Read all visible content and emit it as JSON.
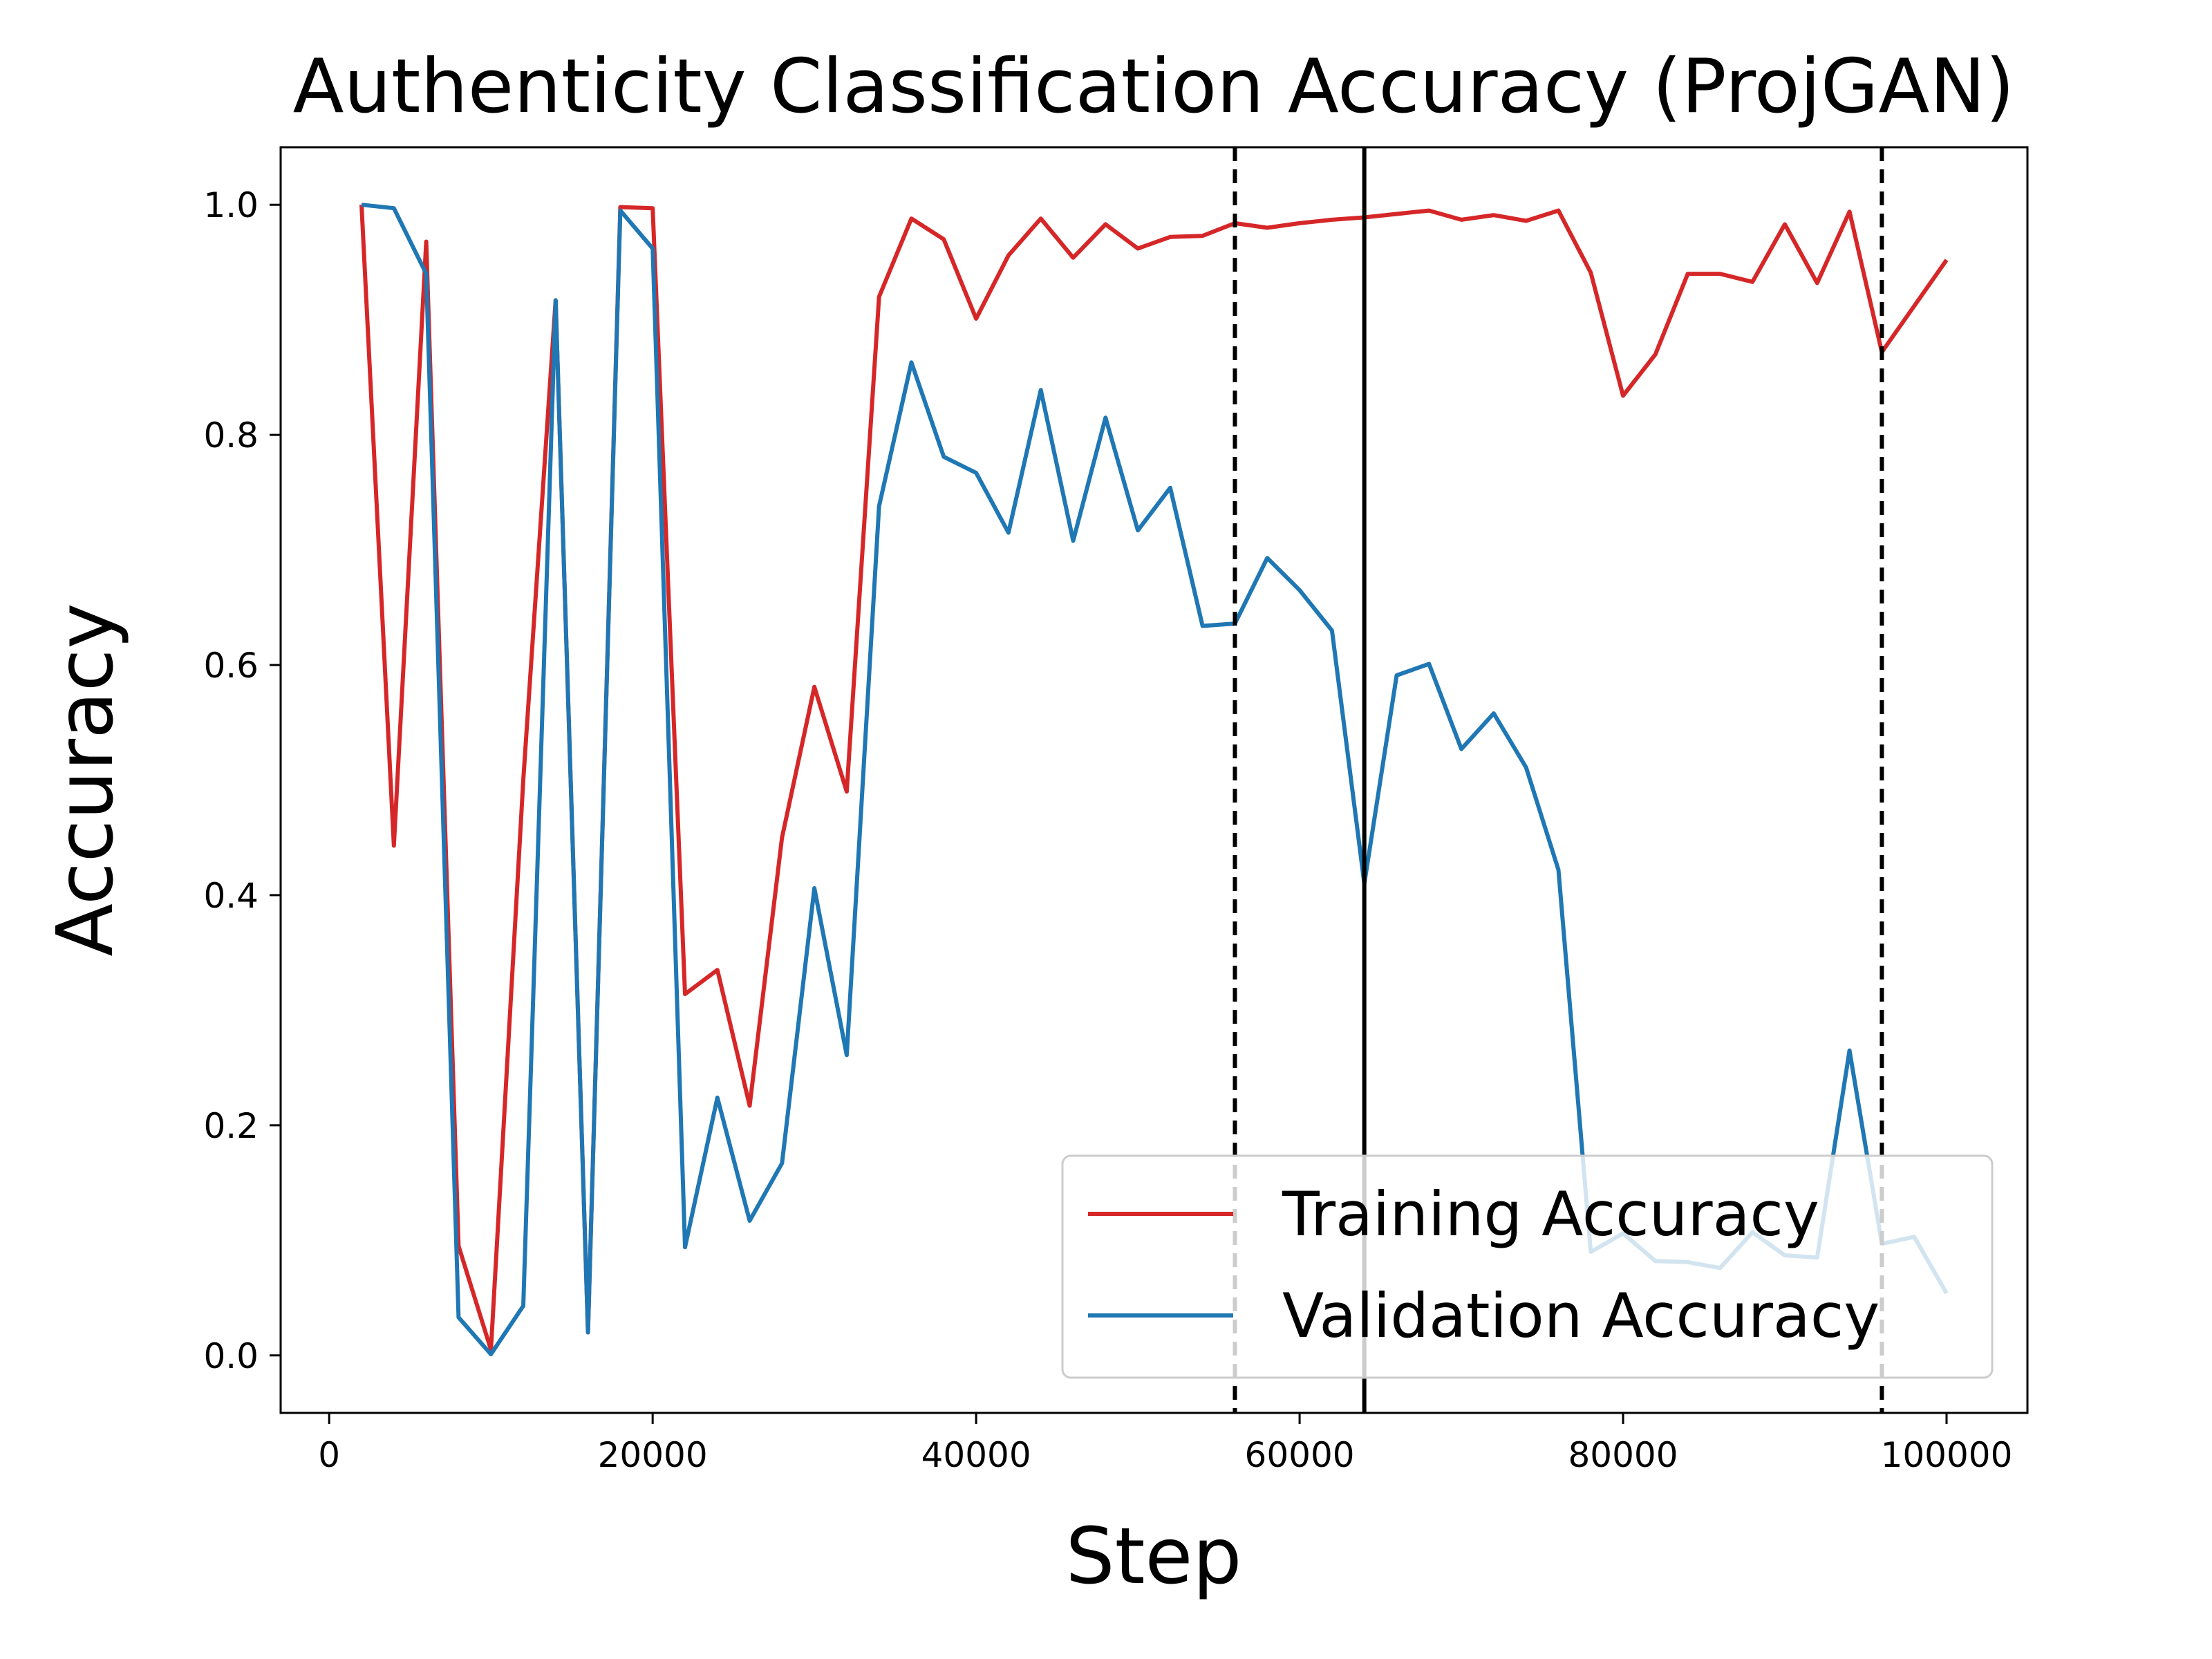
{
  "chart_data": {
    "type": "line",
    "title": "Authenticity Classification Accuracy (ProjGAN)",
    "xlabel": "Step",
    "ylabel": "Accuracy",
    "xlim": [
      -3000,
      105000
    ],
    "ylim": [
      -0.05,
      1.05
    ],
    "xticks": [
      0,
      20000,
      40000,
      60000,
      80000,
      100000
    ],
    "xtick_labels": [
      "0",
      "20000",
      "40000",
      "60000",
      "80000",
      "100000"
    ],
    "yticks": [
      0.0,
      0.2,
      0.4,
      0.6,
      0.8,
      1.0
    ],
    "ytick_labels": [
      "0.0",
      "0.2",
      "0.4",
      "0.6",
      "0.8",
      "1.0"
    ],
    "grid": false,
    "legend_position": "lower-right",
    "vlines": [
      {
        "x": 56000,
        "style": "dashed"
      },
      {
        "x": 64000,
        "style": "solid"
      },
      {
        "x": 96000,
        "style": "dashed"
      }
    ],
    "x": [
      2000,
      4000,
      6000,
      8000,
      10000,
      12000,
      14000,
      16000,
      18000,
      20000,
      22000,
      24000,
      26000,
      28000,
      30000,
      32000,
      34000,
      36000,
      38000,
      40000,
      42000,
      44000,
      46000,
      48000,
      50000,
      52000,
      54000,
      56000,
      58000,
      60000,
      62000,
      64000,
      66000,
      68000,
      70000,
      72000,
      74000,
      76000,
      78000,
      80000,
      82000,
      84000,
      86000,
      88000,
      90000,
      92000,
      94000,
      96000,
      98000,
      100000
    ],
    "series": [
      {
        "name": "Training Accuracy",
        "color": "#d62728",
        "values": [
          1.0,
          0.443,
          0.968,
          0.095,
          0.005,
          0.5,
          0.917,
          0.02,
          0.998,
          0.997,
          0.314,
          0.335,
          0.217,
          0.45,
          0.581,
          0.49,
          0.92,
          0.988,
          0.97,
          0.901,
          0.956,
          0.988,
          0.954,
          0.983,
          0.962,
          0.972,
          0.973,
          0.984,
          0.98,
          0.984,
          0.987,
          0.989,
          0.992,
          0.995,
          0.987,
          0.991,
          0.986,
          0.995,
          0.941,
          0.834,
          0.87,
          0.94,
          0.94,
          0.933,
          0.983,
          0.932,
          0.994,
          0.872,
          0.912,
          0.952
        ]
      },
      {
        "name": "Validation Accuracy",
        "color": "#1f77b4",
        "values": [
          1.0,
          0.997,
          0.94,
          0.033,
          0.001,
          0.043,
          0.917,
          0.02,
          0.995,
          0.962,
          0.094,
          0.224,
          0.117,
          0.167,
          0.406,
          0.261,
          0.738,
          0.863,
          0.781,
          0.767,
          0.715,
          0.839,
          0.708,
          0.815,
          0.717,
          0.754,
          0.634,
          0.636,
          0.693,
          0.665,
          0.63,
          0.41,
          0.591,
          0.601,
          0.527,
          0.558,
          0.511,
          0.422,
          0.09,
          0.106,
          0.082,
          0.081,
          0.076,
          0.107,
          0.087,
          0.085,
          0.265,
          0.097,
          0.103,
          0.054
        ]
      }
    ]
  }
}
